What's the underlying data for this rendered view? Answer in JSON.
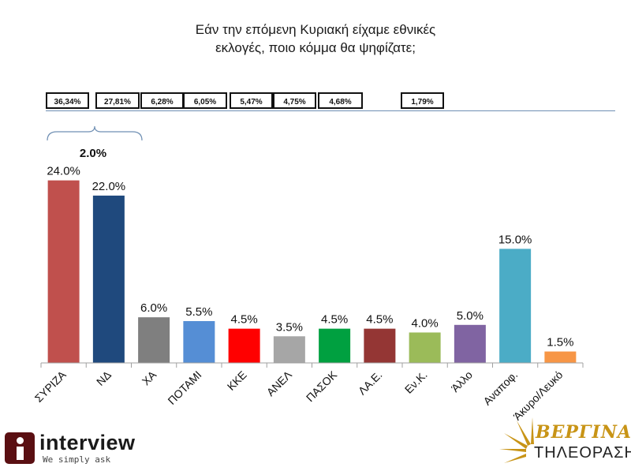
{
  "title_line1": "Εάν την επόμενη Κυριακή είχαμε εθνικές",
  "title_line2": "εκλογές, ποιο κόμμα θα ψηφίζατε;",
  "reference_boxes": [
    "36,34%",
    "27,81%",
    "6,28%",
    "6,05%",
    "5,47%",
    "4,75%",
    "4,68%",
    "1,79%"
  ],
  "gap_label": "2.0%",
  "colors": {
    "bars": [
      "#c0504d",
      "#1f497d",
      "#7f7f7f",
      "#558ed5",
      "#ff0000",
      "#a6a6a6",
      "#00a040",
      "#943634",
      "#9bbb59",
      "#8064a2",
      "#4bacc6",
      "#f79646"
    ],
    "axis": "#a0a0a0",
    "reference_line": "#6f8fb3",
    "logo_left": "#5a0f12",
    "logo_right": "#c89416"
  },
  "chart_data": {
    "type": "bar",
    "title": "Εάν την επόμενη Κυριακή είχαμε εθνικές εκλογές, ποιο κόμμα θα ψηφίζατε;",
    "categories": [
      "ΣΥΡΙΖΑ",
      "ΝΔ",
      "ΧΑ",
      "ΠΟΤΑΜΙ",
      "ΚΚΕ",
      "ΑΝΕΛ",
      "ΠΑΣΟΚ",
      "ΛΑ.Ε.",
      "Εν.Κ.",
      "Άλλο",
      "Αναποφ.",
      "Άκυρο/Λευκό"
    ],
    "values": [
      24.0,
      22.0,
      6.0,
      5.5,
      4.5,
      3.5,
      4.5,
      4.5,
      4.0,
      5.0,
      15.0,
      1.5
    ],
    "value_labels": [
      "24.0%",
      "22.0%",
      "6.0%",
      "5.5%",
      "4.5%",
      "3.5%",
      "4.5%",
      "4.5%",
      "4.0%",
      "5.0%",
      "15.0%",
      "1.5%"
    ],
    "xlabel": "",
    "ylabel": "",
    "ylim": [
      0,
      25
    ]
  },
  "logos": {
    "left_name": "interview",
    "left_tagline": "We simply ask",
    "right_name": "ΒΕΡΓΙΝΑ",
    "right_sub": "ΤΗΛΕΟΡΑΣΗ"
  }
}
